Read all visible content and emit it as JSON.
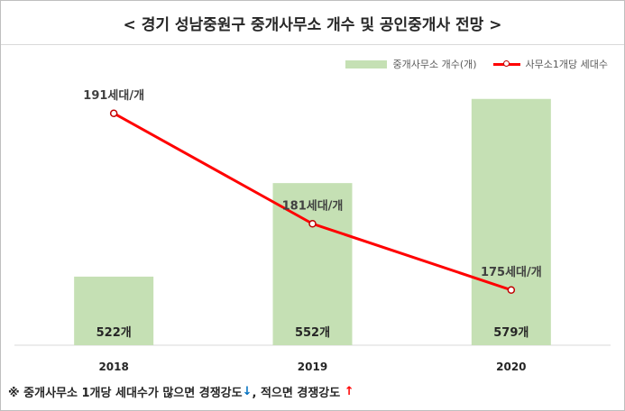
{
  "title": "< 경기 성남중원구 중개사무소 개수 및 공인중개사 전망 >",
  "legend": {
    "bar_label": "중개사무소 개수(개)",
    "line_label": "사무소1개당 세대수"
  },
  "footnote": {
    "prefix": "※ 중개사무소 1개당 세대수가 많으면 경쟁강도",
    "down_arrow": "↓",
    "middle": ", 적으면 경쟁강도 ",
    "up_arrow": "↑"
  },
  "colors": {
    "bar": "#c5e0b4",
    "line": "#ff0000",
    "marker_edge": "#c00000"
  },
  "chart_data": {
    "type": "bar",
    "categories": [
      "2018",
      "2019",
      "2020"
    ],
    "series": [
      {
        "name": "중개사무소 개수(개)",
        "type": "bar",
        "values": [
          522,
          552,
          579
        ],
        "labels": [
          "522개",
          "552개",
          "579개"
        ]
      },
      {
        "name": "사무소1개당 세대수",
        "type": "line",
        "values": [
          191,
          181,
          175
        ],
        "labels": [
          "191세대/개",
          "181세대/개",
          "175세대/개"
        ]
      }
    ],
    "bar_axis_range": [
      500,
      585
    ],
    "line_axis_range": [
      170,
      194
    ],
    "grid": false,
    "legend_position": "top-right"
  }
}
